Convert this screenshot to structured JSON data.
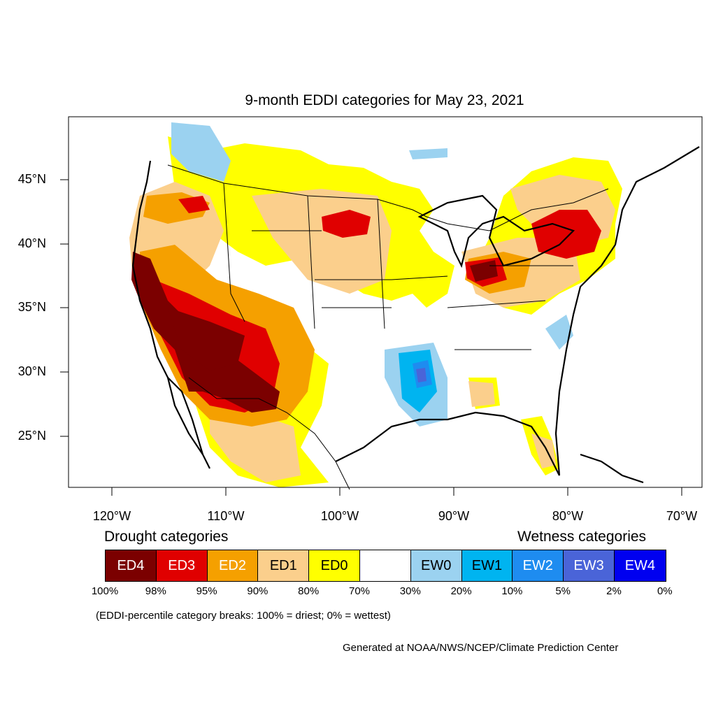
{
  "title": "9-month EDDI categories for May 23, 2021",
  "lat_labels": [
    "45°N",
    "40°N",
    "35°N",
    "30°N",
    "25°N"
  ],
  "lon_labels": [
    "120°W",
    "110°W",
    "100°W",
    "90°W",
    "80°W",
    "70°W"
  ],
  "legend": {
    "drought_heading": "Drought categories",
    "wetness_heading": "Wetness categories",
    "categories": [
      {
        "label": "ED4",
        "color": "#7b0000",
        "text_color": "#ffffff"
      },
      {
        "label": "ED3",
        "color": "#e00000",
        "text_color": "#ffffff"
      },
      {
        "label": "ED2",
        "color": "#f5a000",
        "text_color": "#ffffff"
      },
      {
        "label": "ED1",
        "color": "#fbcf8c",
        "text_color": "#000000"
      },
      {
        "label": "ED0",
        "color": "#ffff00",
        "text_color": "#000000"
      },
      {
        "label": "",
        "color": "#ffffff",
        "text_color": "#000000"
      },
      {
        "label": "EW0",
        "color": "#9bd2f0",
        "text_color": "#000000"
      },
      {
        "label": "EW1",
        "color": "#00b4f0",
        "text_color": "#000000"
      },
      {
        "label": "EW2",
        "color": "#1e8cf0",
        "text_color": "#ffffff"
      },
      {
        "label": "EW3",
        "color": "#4a64d8",
        "text_color": "#ffffff"
      },
      {
        "label": "EW4",
        "color": "#0000f0",
        "text_color": "#ffffff"
      }
    ],
    "percentiles": [
      "100%",
      "98%",
      "95%",
      "90%",
      "80%",
      "70%",
      "30%",
      "20%",
      "10%",
      "5%",
      "2%",
      "0%"
    ]
  },
  "note": "(EDDI-percentile category breaks: 100% = driest; 0% = wettest)",
  "credit": "Generated at NOAA/NWS/NCEP/Climate Prediction Center"
}
